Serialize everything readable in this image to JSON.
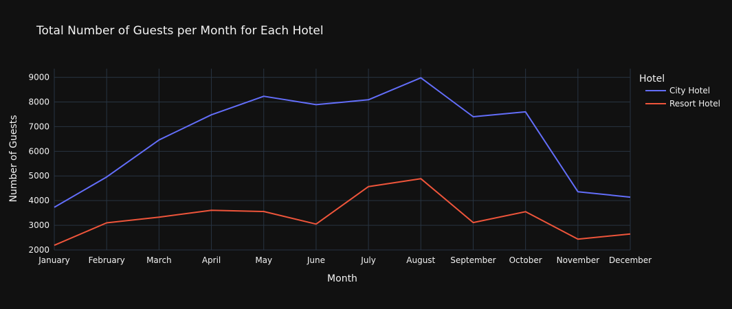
{
  "chart_data": {
    "type": "line",
    "title": "Total Number of Guests per Month for Each Hotel",
    "xlabel": "Month",
    "ylabel": "Number of Guests",
    "categories": [
      "January",
      "February",
      "March",
      "April",
      "May",
      "June",
      "July",
      "August",
      "September",
      "October",
      "November",
      "December"
    ],
    "ylim": [
      2000,
      9350
    ],
    "yticks": [
      2000,
      3000,
      4000,
      5000,
      6000,
      7000,
      8000,
      9000
    ],
    "grid": true,
    "legend": {
      "title": "Hotel",
      "position": "right"
    },
    "series": [
      {
        "name": "City Hotel",
        "color": "#636efa",
        "values": [
          3730,
          4960,
          6460,
          7480,
          8230,
          7890,
          8090,
          8980,
          7400,
          7600,
          4360,
          4140
        ]
      },
      {
        "name": "Resort Hotel",
        "color": "#ef553b",
        "values": [
          2190,
          3100,
          3330,
          3610,
          3560,
          3050,
          4570,
          4890,
          3110,
          3550,
          2440,
          2650
        ]
      }
    ]
  }
}
